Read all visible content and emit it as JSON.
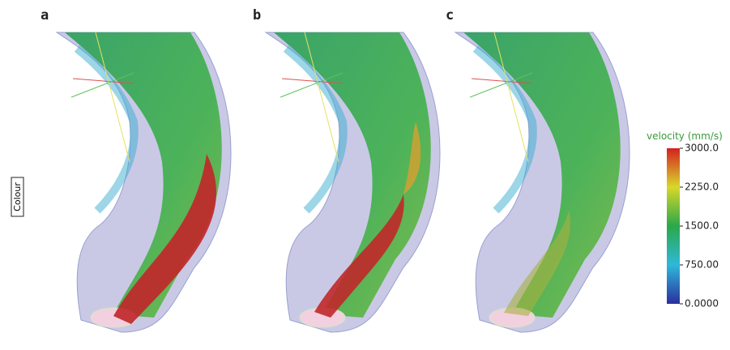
{
  "panels": [
    {
      "label": "a"
    },
    {
      "label": "b"
    },
    {
      "label": "c"
    }
  ],
  "side_label": "Colour",
  "colorbar": {
    "title": "velocity (mm/s)",
    "range": [
      0,
      3000
    ],
    "ticks": [
      {
        "value": 3000,
        "label": "3000.0"
      },
      {
        "value": 2250,
        "label": "2250.0"
      },
      {
        "value": 1500,
        "label": "1500.0"
      },
      {
        "value": 750,
        "label": "750.00"
      },
      {
        "value": 0,
        "label": "0.0000"
      }
    ]
  }
}
